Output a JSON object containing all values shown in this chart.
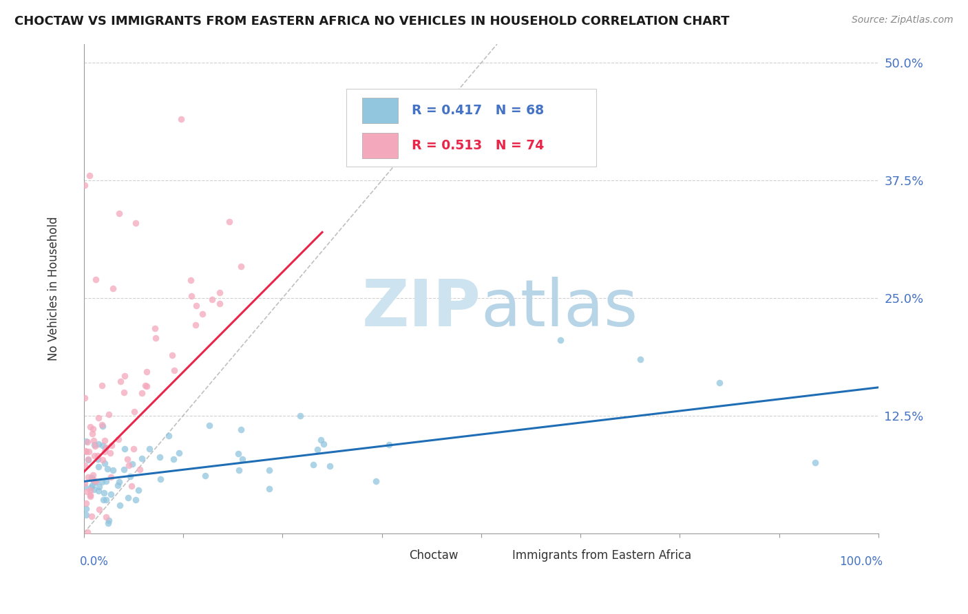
{
  "title": "CHOCTAW VS IMMIGRANTS FROM EASTERN AFRICA NO VEHICLES IN HOUSEHOLD CORRELATION CHART",
  "source": "Source: ZipAtlas.com",
  "ylabel": "No Vehicles in Household",
  "legend_choctaw": "Choctaw",
  "legend_eastern_africa": "Immigrants from Eastern Africa",
  "R_choctaw": 0.417,
  "N_choctaw": 68,
  "R_eastern": 0.513,
  "N_eastern": 74,
  "choctaw_color": "#92c5de",
  "eastern_color": "#f4a8bc",
  "choctaw_line_color": "#1f6eb5",
  "eastern_line_color": "#e8264a",
  "background_color": "#ffffff",
  "xlim": [
    0.0,
    1.0
  ],
  "ylim": [
    0.0,
    0.52
  ],
  "ytick_vals": [
    0.0,
    0.125,
    0.25,
    0.375,
    0.5
  ],
  "ytick_labels": [
    "",
    "12.5%",
    "25.0%",
    "37.5%",
    "50.0%"
  ]
}
